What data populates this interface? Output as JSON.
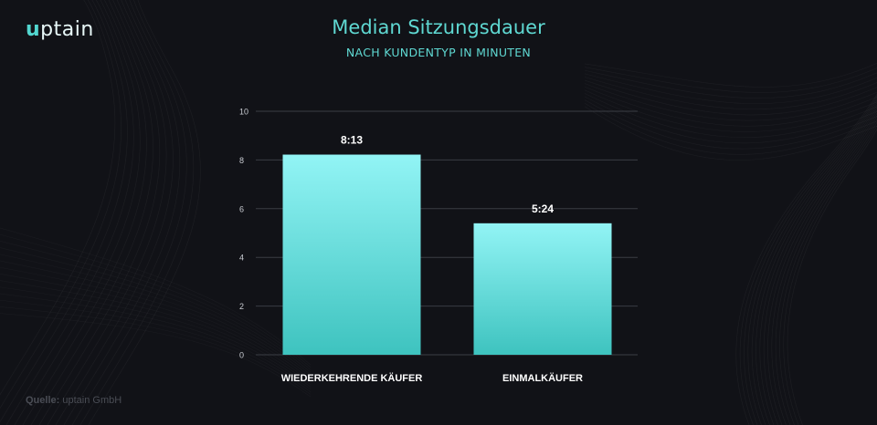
{
  "logo": {
    "mark": "u",
    "text": "ptain"
  },
  "header": {
    "title": "Median Sitzungsdauer",
    "subtitle": "NACH KUNDENTYP IN MINUTEN"
  },
  "source": {
    "label": "Quelle:",
    "text": "uptain GmbH"
  },
  "colors": {
    "background": "#111217",
    "accent": "#5fd8d2",
    "bar_top": "#92f4f5",
    "bar_bottom": "#3ec3bf",
    "grid": "#3a3d44"
  },
  "chart_data": {
    "type": "bar",
    "title": "Median Sitzungsdauer",
    "subtitle": "NACH KUNDENTYP IN MINUTEN",
    "categories": [
      "WIEDERKEHRENDE KÄUFER",
      "EINMALKÄUFER"
    ],
    "values": [
      8.22,
      5.4
    ],
    "data_labels": [
      "8:13",
      "5:24"
    ],
    "y_ticks": [
      0,
      2,
      4,
      6,
      8,
      10
    ],
    "ylim": [
      0,
      10
    ],
    "grid": true,
    "legend": "none"
  }
}
